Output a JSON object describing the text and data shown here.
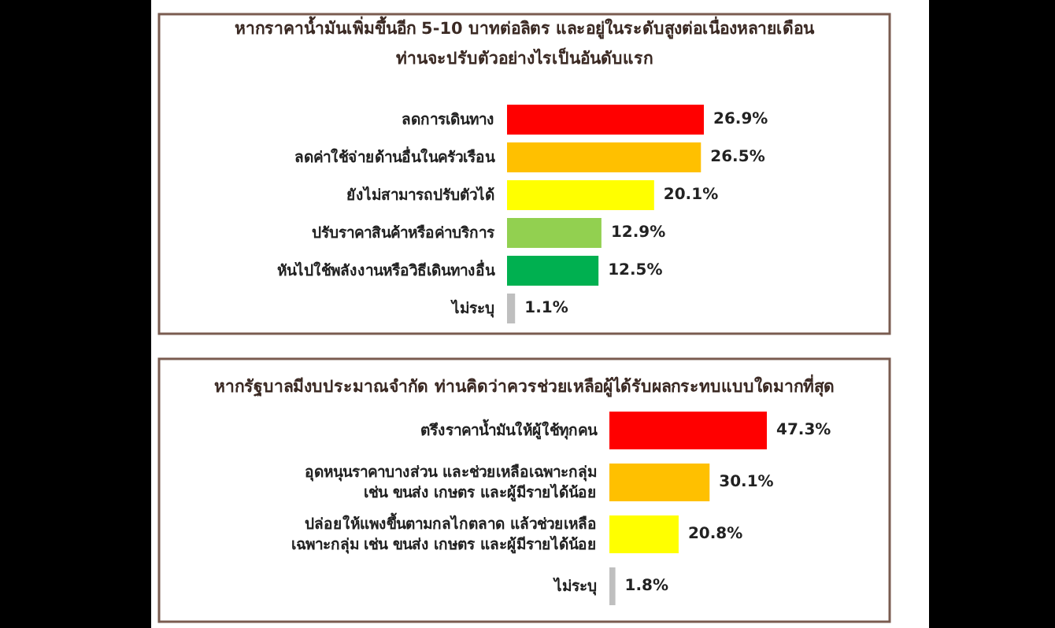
{
  "chart_data": [
    {
      "type": "bar",
      "orientation": "horizontal",
      "title": "หากราคาน้ำมันเพิ่มขึ้นอีก 5-10 บาทต่อลิตร และอยู่ในระดับสูงต่อเนื่องหลายเดือน\nท่านจะปรับตัวอย่างไรเป็นอันดับแรก",
      "categories": [
        "ลดการเดินทาง",
        "ลดค่าใช้จ่ายด้านอื่นในครัวเรือน",
        "ยังไม่สามารถปรับตัวได้",
        "ปรับราคาสินค้าหรือค่าบริการ",
        "หันไปใช้พลังงานหรือวิธีเดินทางอื่น",
        "ไม่ระบุ"
      ],
      "values": [
        26.9,
        26.5,
        20.1,
        12.9,
        12.5,
        1.1
      ],
      "colors": [
        "#ff0000",
        "#ffc000",
        "#ffff00",
        "#92d050",
        "#00b050",
        "#bfbfbf"
      ],
      "value_labels": [
        "26.9%",
        "26.5%",
        "20.1%",
        "12.9%",
        "12.5%",
        "1.1%"
      ]
    },
    {
      "type": "bar",
      "orientation": "horizontal",
      "title": "หากรัฐบาลมีงบประมาณจำกัด ท่านคิดว่าควรช่วยเหลือผู้ได้รับผลกระทบแบบใดมากที่สุด",
      "categories": [
        "ตรึงราคาน้ำมันให้ผู้ใช้ทุกคน",
        "อุดหนุนราคาบางส่วน และช่วยเหลือเฉพาะกลุ่ม\nเช่น ขนส่ง เกษตร และผู้มีรายได้น้อย",
        "ปล่อยให้แพงขึ้นตามกลไกตลาด แล้วช่วยเหลือ\nเฉพาะกลุ่ม เช่น ขนส่ง เกษตร และผู้มีรายได้น้อย",
        "ไม่ระบุ"
      ],
      "values": [
        47.3,
        30.1,
        20.8,
        1.8
      ],
      "colors": [
        "#ff0000",
        "#ffc000",
        "#ffff00",
        "#bfbfbf"
      ],
      "value_labels": [
        "47.3%",
        "30.1%",
        "20.8%",
        "1.8%"
      ]
    }
  ]
}
